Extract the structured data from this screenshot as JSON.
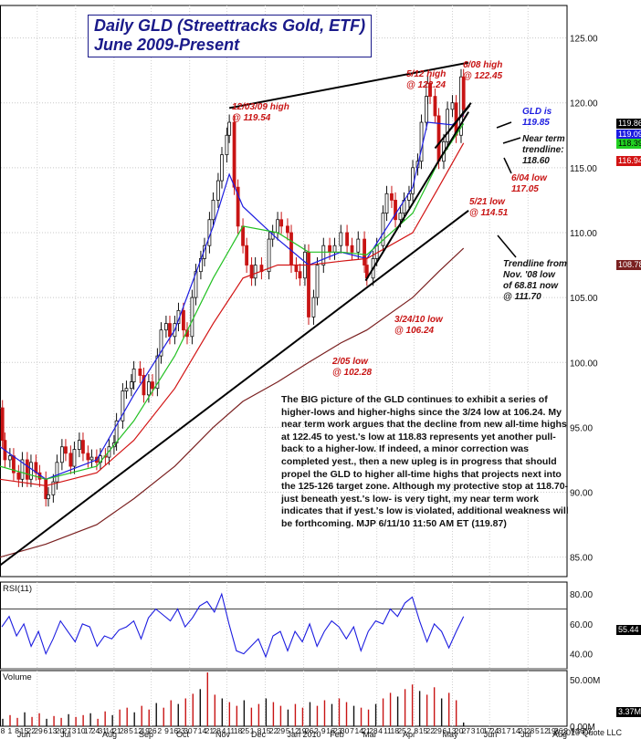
{
  "title": {
    "line1": "Daily GLD (Streettracks Gold, ETF)",
    "line2": "June 2009-Present"
  },
  "commentary": "The BIG picture of the GLD continues to exhibit a series of higher-lows and higher-highs since the 3/24 low at 106.24. My near term work argues that the decline from new all-time highs at 122.45 to yest.'s low at 118.83 represents yet another pull-back to a higher-low. If indeed, a minor correction was completed yest., then a new upleg is in progress that should propel the GLD to higher all-time highs that projects next into the 125-126 target zone. Although my protective stop at 118.70- just beneath yest.'s low- is very tight, my near term work indicates that if yest.'s low is violated, additional weakness will be forthcoming. MJP  6/11/10 11:50 AM ET (119.87)",
  "annotations": {
    "high_1203": [
      "12/03/09 high",
      "@ 119.54"
    ],
    "high_0512": [
      "5/12 high",
      "@ 122.24"
    ],
    "high_0608": [
      "6/08 high",
      "@ 122.45"
    ],
    "gld_is": [
      "GLD is",
      "119.85"
    ],
    "near_term": [
      "Near term",
      "trendline:",
      "118.60"
    ],
    "low_0604": [
      "6/04 low",
      "117.05"
    ],
    "low_0521": [
      "5/21 low",
      "@ 114.51"
    ],
    "low_0324": [
      "3/24/10 low",
      "@ 106.24"
    ],
    "low_0205": [
      "2/05 low",
      "@ 102.28"
    ],
    "trendline_nov": [
      "Trendline from",
      "Nov. '08 low",
      "of 68.81 now",
      "@ 111.70"
    ]
  },
  "price_tags": [
    {
      "text": "119.86",
      "color": "#ffffff",
      "bg": "#000000"
    },
    {
      "text": "119.09",
      "color": "#ffffff",
      "bg": "#1c1ce0"
    },
    {
      "text": "118.39",
      "color": "#000000",
      "bg": "#22d022"
    },
    {
      "text": "116.94",
      "color": "#ffffff",
      "bg": "#d21414"
    },
    {
      "text": "108.78",
      "color": "#ffffff",
      "bg": "#7a2020"
    }
  ],
  "panels": {
    "rsi_label": "RSI(11)",
    "volume_label": "Volume",
    "rsi_value": "55.44",
    "volume_value": "3.37M",
    "copyright": "A 2010 Quote LLC"
  },
  "x_ticks": [
    "8",
    "1",
    "8",
    "15",
    "22",
    "29",
    "6",
    "13",
    "20",
    "27",
    "3",
    "10",
    "17",
    "24",
    "31",
    "14",
    "21",
    "28",
    "5",
    "12",
    "19",
    "26",
    "2",
    "9",
    "16",
    "23",
    "30",
    "7",
    "14",
    "21",
    "28",
    "4",
    "11",
    "18",
    "25",
    "1",
    "8",
    "15",
    "22",
    "29",
    "5",
    "12",
    "19",
    "26",
    "2",
    "9",
    "16",
    "23",
    "30",
    "7",
    "14",
    "21",
    "28",
    "4",
    "11",
    "18",
    "25",
    "2",
    "8",
    "15",
    "22",
    "29",
    "6",
    "13",
    "20",
    "27",
    "3",
    "10",
    "17",
    "24",
    "31",
    "7",
    "14",
    "21",
    "28",
    "5",
    "12",
    "19",
    "26",
    "2",
    "9",
    "16",
    "23"
  ],
  "month_labels": [
    "Jun",
    "Jul",
    "Aug",
    "Sep",
    "Oct",
    "Nov",
    "Dec",
    "Jan 2010",
    "Feb",
    "Mar",
    "Apr",
    "May",
    "Jun",
    "Jul",
    "Aug"
  ],
  "chart_data": {
    "type": "candlestick",
    "price_axis": {
      "ticks": [
        "125.00",
        "120.00",
        "115.00",
        "110.00",
        "105.00",
        "100.00",
        "95.00",
        "90.00",
        "85.00"
      ],
      "ylim": [
        83.5,
        127.5
      ],
      "grid": true
    },
    "rsi_axis": {
      "ticks": [
        "80.00",
        "60.00",
        "40.00"
      ],
      "ylim": [
        30,
        88
      ],
      "reference_levels": [
        70,
        30
      ]
    },
    "volume_axis": {
      "ticks": [
        "50.00M",
        "0.00M"
      ]
    },
    "x_range": [
      "2009-06-01",
      "2010-08-31"
    ],
    "price_series": [
      [
        "2009-06-01",
        96.5
      ],
      [
        "2009-06-03",
        94.0
      ],
      [
        "2009-06-05",
        92.5
      ],
      [
        "2009-06-09",
        92.8
      ],
      [
        "2009-06-12",
        91.5
      ],
      [
        "2009-06-16",
        91.0
      ],
      [
        "2009-06-19",
        92.5
      ],
      [
        "2009-06-23",
        91.0
      ],
      [
        "2009-06-26",
        92.3
      ],
      [
        "2009-06-30",
        91.5
      ],
      [
        "2009-07-03",
        91.0
      ],
      [
        "2009-07-08",
        89.5
      ],
      [
        "2009-07-10",
        89.8
      ],
      [
        "2009-07-14",
        90.8
      ],
      [
        "2009-07-17",
        92.3
      ],
      [
        "2009-07-21",
        93.5
      ],
      [
        "2009-07-24",
        93.0
      ],
      [
        "2009-07-28",
        92.0
      ],
      [
        "2009-07-31",
        93.3
      ],
      [
        "2009-08-04",
        94.0
      ],
      [
        "2009-08-07",
        93.0
      ],
      [
        "2009-08-11",
        92.5
      ],
      [
        "2009-08-14",
        92.7
      ],
      [
        "2009-08-18",
        92.3
      ],
      [
        "2009-08-21",
        92.8
      ],
      [
        "2009-08-25",
        92.7
      ],
      [
        "2009-08-28",
        93.5
      ],
      [
        "2009-09-01",
        93.8
      ],
      [
        "2009-09-03",
        95.5
      ],
      [
        "2009-09-08",
        97.8
      ],
      [
        "2009-09-11",
        98.0
      ],
      [
        "2009-09-15",
        98.5
      ],
      [
        "2009-09-17",
        99.5
      ],
      [
        "2009-09-22",
        99.0
      ],
      [
        "2009-09-25",
        97.5
      ],
      [
        "2009-09-29",
        98.5
      ],
      [
        "2009-10-02",
        98.0
      ],
      [
        "2009-10-06",
        100.5
      ],
      [
        "2009-10-09",
        102.5
      ],
      [
        "2009-10-13",
        103.0
      ],
      [
        "2009-10-16",
        102.0
      ],
      [
        "2009-10-20",
        103.0
      ],
      [
        "2009-10-23",
        104.0
      ],
      [
        "2009-10-27",
        102.5
      ],
      [
        "2009-10-30",
        102.0
      ],
      [
        "2009-11-03",
        105.0
      ],
      [
        "2009-11-06",
        107.0
      ],
      [
        "2009-11-10",
        108.0
      ],
      [
        "2009-11-13",
        109.0
      ],
      [
        "2009-11-17",
        111.0
      ],
      [
        "2009-11-20",
        112.5
      ],
      [
        "2009-11-24",
        114.0
      ],
      [
        "2009-11-27",
        116.0
      ],
      [
        "2009-12-01",
        117.5
      ],
      [
        "2009-12-03",
        118.5
      ],
      [
        "2009-12-07",
        113.5
      ],
      [
        "2009-12-10",
        110.5
      ],
      [
        "2009-12-14",
        109.0
      ],
      [
        "2009-12-17",
        107.5
      ],
      [
        "2009-12-21",
        106.5
      ],
      [
        "2009-12-24",
        107.5
      ],
      [
        "2009-12-29",
        107.0
      ],
      [
        "2010-01-04",
        109.5
      ],
      [
        "2010-01-07",
        110.0
      ],
      [
        "2010-01-11",
        111.0
      ],
      [
        "2010-01-14",
        110.5
      ],
      [
        "2010-01-19",
        110.0
      ],
      [
        "2010-01-22",
        107.5
      ],
      [
        "2010-01-26",
        107.0
      ],
      [
        "2010-01-29",
        106.5
      ],
      [
        "2010-02-02",
        108.5
      ],
      [
        "2010-02-05",
        103.5
      ],
      [
        "2010-02-09",
        105.0
      ],
      [
        "2010-02-12",
        107.5
      ],
      [
        "2010-02-17",
        109.0
      ],
      [
        "2010-02-22",
        108.5
      ],
      [
        "2010-02-26",
        109.0
      ],
      [
        "2010-03-03",
        110.0
      ],
      [
        "2010-03-08",
        109.0
      ],
      [
        "2010-03-12",
        108.5
      ],
      [
        "2010-03-17",
        109.5
      ],
      [
        "2010-03-22",
        107.5
      ],
      [
        "2010-03-24",
        106.5
      ],
      [
        "2010-03-29",
        108.0
      ],
      [
        "2010-04-01",
        109.0
      ],
      [
        "2010-04-06",
        111.5
      ],
      [
        "2010-04-09",
        113.0
      ],
      [
        "2010-04-13",
        112.5
      ],
      [
        "2010-04-16",
        111.0
      ],
      [
        "2010-04-20",
        111.5
      ],
      [
        "2010-04-23",
        112.5
      ],
      [
        "2010-04-27",
        113.0
      ],
      [
        "2010-04-30",
        115.0
      ],
      [
        "2010-05-04",
        115.5
      ],
      [
        "2010-05-07",
        118.5
      ],
      [
        "2010-05-11",
        120.5
      ],
      [
        "2010-05-12",
        121.5
      ],
      [
        "2010-05-14",
        120.5
      ],
      [
        "2010-05-18",
        119.0
      ],
      [
        "2010-05-21",
        115.5
      ],
      [
        "2010-05-25",
        117.0
      ],
      [
        "2010-05-28",
        119.5
      ],
      [
        "2010-06-01",
        120.0
      ],
      [
        "2010-06-04",
        117.5
      ],
      [
        "2010-06-08",
        122.0
      ],
      [
        "2010-06-10",
        119.5
      ]
    ],
    "series": [
      {
        "name": "",
        "color": "#1c1ce0",
        "points": [
          [
            "2009-06-01",
            93.5
          ],
          [
            "2009-07-08",
            91.0
          ],
          [
            "2009-08-18",
            92.5
          ],
          [
            "2009-09-17",
            97.5
          ],
          [
            "2009-10-20",
            102.5
          ],
          [
            "2009-11-20",
            110.5
          ],
          [
            "2009-12-03",
            114.5
          ],
          [
            "2009-12-14",
            112.0
          ],
          [
            "2010-01-11",
            109.5
          ],
          [
            "2010-02-05",
            107.5
          ],
          [
            "2010-03-03",
            108.5
          ],
          [
            "2010-03-24",
            108.0
          ],
          [
            "2010-04-30",
            113.5
          ],
          [
            "2010-05-12",
            118.5
          ],
          [
            "2010-06-01",
            118.3
          ],
          [
            "2010-06-10",
            119.1
          ]
        ]
      },
      {
        "name": "",
        "color": "#22c022",
        "points": [
          [
            "2009-06-01",
            92.0
          ],
          [
            "2009-07-08",
            91.0
          ],
          [
            "2009-08-18",
            92.0
          ],
          [
            "2009-09-17",
            95.5
          ],
          [
            "2009-10-20",
            100.5
          ],
          [
            "2009-11-20",
            106.5
          ],
          [
            "2009-12-14",
            110.5
          ],
          [
            "2010-01-11",
            110.0
          ],
          [
            "2010-02-05",
            108.5
          ],
          [
            "2010-03-03",
            108.5
          ],
          [
            "2010-03-24",
            108.3
          ],
          [
            "2010-04-30",
            111.5
          ],
          [
            "2010-05-21",
            115.5
          ],
          [
            "2010-06-10",
            118.4
          ]
        ]
      },
      {
        "name": "",
        "color": "#d21414",
        "points": [
          [
            "2009-06-01",
            91.0
          ],
          [
            "2009-07-08",
            90.5
          ],
          [
            "2009-08-18",
            91.5
          ],
          [
            "2009-09-17",
            94.0
          ],
          [
            "2009-10-20",
            98.0
          ],
          [
            "2009-11-20",
            103.0
          ],
          [
            "2009-12-14",
            106.5
          ],
          [
            "2010-01-11",
            107.5
          ],
          [
            "2010-02-05",
            107.5
          ],
          [
            "2010-03-03",
            107.8
          ],
          [
            "2010-03-24",
            108.0
          ],
          [
            "2010-04-30",
            110.0
          ],
          [
            "2010-05-21",
            113.5
          ],
          [
            "2010-06-10",
            116.9
          ]
        ]
      },
      {
        "name": "",
        "color": "#7a2020",
        "points": [
          [
            "2009-06-01",
            85.0
          ],
          [
            "2009-07-08",
            86.0
          ],
          [
            "2009-08-18",
            87.5
          ],
          [
            "2009-09-17",
            89.5
          ],
          [
            "2009-10-20",
            92.0
          ],
          [
            "2009-11-20",
            95.0
          ],
          [
            "2009-12-14",
            97.0
          ],
          [
            "2010-01-11",
            98.5
          ],
          [
            "2010-02-05",
            100.0
          ],
          [
            "2010-03-03",
            101.5
          ],
          [
            "2010-03-24",
            102.5
          ],
          [
            "2010-04-30",
            105.0
          ],
          [
            "2010-05-21",
            107.0
          ],
          [
            "2010-06-10",
            108.8
          ]
        ]
      }
    ],
    "trendlines": [
      {
        "from": [
          "2009-05-20",
          83.5
        ],
        "to": [
          "2010-06-14",
          111.7
        ]
      },
      {
        "from": [
          "2009-12-03",
          119.6
        ],
        "to": [
          "2010-06-14",
          123.1
        ]
      },
      {
        "from": [
          "2010-03-23",
          106.3
        ],
        "to": [
          "2010-06-14",
          119.3
        ]
      },
      {
        "from": [
          "2010-05-18",
          116.5
        ],
        "to": [
          "2010-06-15",
          119.8
        ]
      },
      {
        "from": [
          "2010-05-24",
          117.2
        ],
        "to": [
          "2010-06-16",
          120.0
        ]
      }
    ],
    "rsi": [
      [
        0,
        58
      ],
      [
        1,
        65
      ],
      [
        2,
        52
      ],
      [
        3,
        60
      ],
      [
        4,
        45
      ],
      [
        5,
        55
      ],
      [
        6,
        40
      ],
      [
        7,
        50
      ],
      [
        8,
        62
      ],
      [
        9,
        55
      ],
      [
        10,
        48
      ],
      [
        11,
        60
      ],
      [
        12,
        58
      ],
      [
        13,
        45
      ],
      [
        14,
        52
      ],
      [
        15,
        50
      ],
      [
        16,
        56
      ],
      [
        17,
        58
      ],
      [
        18,
        62
      ],
      [
        19,
        50
      ],
      [
        20,
        64
      ],
      [
        21,
        70
      ],
      [
        22,
        66
      ],
      [
        23,
        62
      ],
      [
        24,
        70
      ],
      [
        25,
        58
      ],
      [
        26,
        64
      ],
      [
        27,
        72
      ],
      [
        28,
        75
      ],
      [
        29,
        68
      ],
      [
        30,
        80
      ],
      [
        31,
        60
      ],
      [
        32,
        42
      ],
      [
        33,
        40
      ],
      [
        34,
        45
      ],
      [
        35,
        50
      ],
      [
        36,
        38
      ],
      [
        37,
        52
      ],
      [
        38,
        55
      ],
      [
        39,
        42
      ],
      [
        40,
        55
      ],
      [
        41,
        48
      ],
      [
        42,
        60
      ],
      [
        43,
        45
      ],
      [
        44,
        55
      ],
      [
        45,
        62
      ],
      [
        46,
        58
      ],
      [
        47,
        50
      ],
      [
        48,
        58
      ],
      [
        49,
        42
      ],
      [
        50,
        55
      ],
      [
        51,
        62
      ],
      [
        52,
        60
      ],
      [
        53,
        70
      ],
      [
        54,
        65
      ],
      [
        55,
        74
      ],
      [
        56,
        78
      ],
      [
        57,
        62
      ],
      [
        58,
        48
      ],
      [
        59,
        60
      ],
      [
        60,
        55
      ],
      [
        61,
        44
      ],
      [
        62,
        55
      ],
      [
        63,
        65
      ]
    ],
    "volume": [
      [
        0,
        8
      ],
      [
        1,
        12
      ],
      [
        2,
        9
      ],
      [
        3,
        15
      ],
      [
        4,
        10
      ],
      [
        5,
        14
      ],
      [
        6,
        8
      ],
      [
        7,
        11
      ],
      [
        8,
        9
      ],
      [
        9,
        13
      ],
      [
        10,
        10
      ],
      [
        11,
        12
      ],
      [
        12,
        14
      ],
      [
        13,
        8
      ],
      [
        14,
        16
      ],
      [
        15,
        12
      ],
      [
        16,
        18
      ],
      [
        17,
        20
      ],
      [
        18,
        15
      ],
      [
        19,
        22
      ],
      [
        20,
        18
      ],
      [
        21,
        25
      ],
      [
        22,
        20
      ],
      [
        23,
        28
      ],
      [
        24,
        24
      ],
      [
        25,
        30
      ],
      [
        26,
        35
      ],
      [
        27,
        40
      ],
      [
        28,
        58
      ],
      [
        29,
        34
      ],
      [
        30,
        30
      ],
      [
        31,
        26
      ],
      [
        32,
        22
      ],
      [
        33,
        28
      ],
      [
        34,
        20
      ],
      [
        35,
        24
      ],
      [
        36,
        30
      ],
      [
        37,
        26
      ],
      [
        38,
        22
      ],
      [
        39,
        18
      ],
      [
        40,
        24
      ],
      [
        41,
        20
      ],
      [
        42,
        26
      ],
      [
        43,
        22
      ],
      [
        44,
        28
      ],
      [
        45,
        24
      ],
      [
        46,
        30
      ],
      [
        47,
        26
      ],
      [
        48,
        22
      ],
      [
        49,
        20
      ],
      [
        50,
        18
      ],
      [
        51,
        24
      ],
      [
        52,
        30
      ],
      [
        53,
        36
      ],
      [
        54,
        32
      ],
      [
        55,
        40
      ],
      [
        56,
        45
      ],
      [
        57,
        38
      ],
      [
        58,
        34
      ],
      [
        59,
        42
      ],
      [
        60,
        30
      ],
      [
        61,
        36
      ],
      [
        62,
        28
      ],
      [
        63,
        4
      ]
    ]
  }
}
